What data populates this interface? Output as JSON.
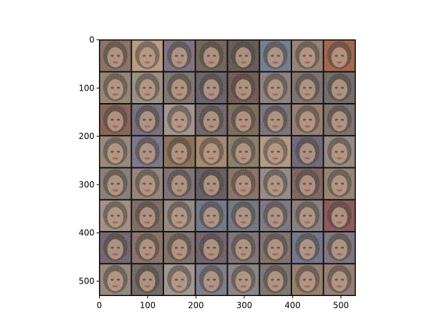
{
  "image": {
    "description_type": "grid of generated face samples",
    "grid": {
      "rows": 8,
      "cols": 8
    },
    "tile_tones": [
      [
        "#7a5a4a",
        "#b8926f",
        "#6a5a6e",
        "#5a4a3c",
        "#4a3a36",
        "#5c6a80",
        "#8a6f60",
        "#9a4a2a"
      ],
      [
        "#8a7460",
        "#8f8270",
        "#6f5d58",
        "#4f4552",
        "#5a3a34",
        "#7f6f6a",
        "#6a5a58",
        "#5a5250"
      ],
      [
        "#7a4638",
        "#5e5668",
        "#9a8a80",
        "#5a4a52",
        "#6a5040",
        "#665a66",
        "#8a6a58",
        "#6a5a52"
      ],
      [
        "#8a7a66",
        "#6a607a",
        "#7a5a3a",
        "#a07858",
        "#7a6a50",
        "#b09070",
        "#5a4a66",
        "#8a7a70"
      ],
      [
        "#7a6a62",
        "#8a7264",
        "#6a5a62",
        "#4a4046",
        "#7a5a4a",
        "#8a7a78",
        "#6a4a40",
        "#8a7060"
      ],
      [
        "#9a8272",
        "#6a5248",
        "#8a7a72",
        "#5a6276",
        "#5e6070",
        "#6a6270",
        "#7a6a6a",
        "#7a3a3a"
      ],
      [
        "#5a4a5a",
        "#7a5a4e",
        "#6a5a52",
        "#5a4652",
        "#6a5a5e",
        "#6a5a54",
        "#5a5e7a",
        "#6a5e6a"
      ],
      [
        "#8a7868",
        "#5a4e4a",
        "#9a8a86",
        "#6a6a7a",
        "#7a7276",
        "#6a5e5a",
        "#8a6a50",
        "#8a6a5e"
      ]
    ]
  },
  "axes": {
    "x_ticks": [
      {
        "value": 0,
        "label": "0"
      },
      {
        "value": 100,
        "label": "100"
      },
      {
        "value": 200,
        "label": "200"
      },
      {
        "value": 300,
        "label": "300"
      },
      {
        "value": 400,
        "label": "400"
      },
      {
        "value": 500,
        "label": "500"
      }
    ],
    "y_ticks": [
      {
        "value": 0,
        "label": "0"
      },
      {
        "value": 100,
        "label": "100"
      },
      {
        "value": 200,
        "label": "200"
      },
      {
        "value": 300,
        "label": "300"
      },
      {
        "value": 400,
        "label": "400"
      },
      {
        "value": 500,
        "label": "500"
      }
    ],
    "extent": [
      0,
      530
    ]
  }
}
